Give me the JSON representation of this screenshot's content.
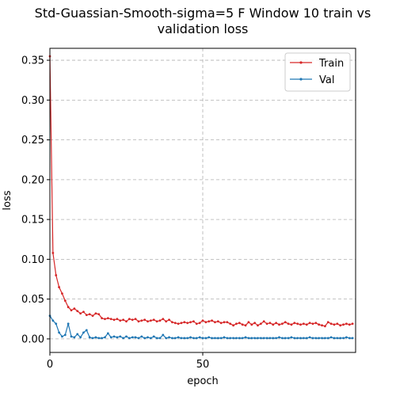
{
  "chart_data": {
    "type": "line",
    "title_line1": "Std-Guassian-Smooth-sigma=5 F Window 10 train vs",
    "title_line2": "validation loss",
    "xlabel": "epoch",
    "ylabel": "loss",
    "xlim": [
      0,
      100
    ],
    "ylim": [
      -0.017,
      0.365
    ],
    "xticks": [
      0,
      50
    ],
    "yticks": [
      0.0,
      0.05,
      0.1,
      0.15,
      0.2,
      0.25,
      0.3,
      0.35
    ],
    "ytick_labels": [
      "0.00",
      "0.05",
      "0.10",
      "0.15",
      "0.20",
      "0.25",
      "0.30",
      "0.35"
    ],
    "xtick_labels": [
      "0",
      "50"
    ],
    "grid": true,
    "legend_position": "top-right",
    "series": [
      {
        "name": "Train",
        "color": "#d62728",
        "values": [
          0.355,
          0.108,
          0.08,
          0.065,
          0.057,
          0.048,
          0.04,
          0.036,
          0.038,
          0.035,
          0.032,
          0.034,
          0.03,
          0.031,
          0.029,
          0.032,
          0.031,
          0.026,
          0.025,
          0.026,
          0.025,
          0.024,
          0.025,
          0.023,
          0.024,
          0.022,
          0.025,
          0.024,
          0.025,
          0.022,
          0.023,
          0.024,
          0.022,
          0.023,
          0.024,
          0.022,
          0.023,
          0.025,
          0.022,
          0.024,
          0.021,
          0.02,
          0.019,
          0.02,
          0.021,
          0.02,
          0.021,
          0.022,
          0.019,
          0.02,
          0.023,
          0.021,
          0.022,
          0.023,
          0.021,
          0.022,
          0.02,
          0.021,
          0.021,
          0.019,
          0.017,
          0.019,
          0.02,
          0.018,
          0.017,
          0.021,
          0.018,
          0.02,
          0.017,
          0.019,
          0.022,
          0.019,
          0.02,
          0.018,
          0.02,
          0.018,
          0.019,
          0.021,
          0.019,
          0.018,
          0.02,
          0.019,
          0.018,
          0.019,
          0.018,
          0.02,
          0.019,
          0.02,
          0.018,
          0.017,
          0.016,
          0.021,
          0.019,
          0.018,
          0.019,
          0.017,
          0.018,
          0.019,
          0.018,
          0.019
        ]
      },
      {
        "name": "Val",
        "color": "#1f77b4",
        "values": [
          0.029,
          0.023,
          0.019,
          0.008,
          0.003,
          0.005,
          0.019,
          0.003,
          0.002,
          0.006,
          0.002,
          0.008,
          0.011,
          0.002,
          0.001,
          0.002,
          0.001,
          0.001,
          0.002,
          0.007,
          0.002,
          0.003,
          0.002,
          0.003,
          0.001,
          0.003,
          0.001,
          0.002,
          0.002,
          0.001,
          0.003,
          0.001,
          0.002,
          0.001,
          0.003,
          0.001,
          0.001,
          0.005,
          0.001,
          0.002,
          0.001,
          0.001,
          0.002,
          0.001,
          0.001,
          0.001,
          0.002,
          0.001,
          0.001,
          0.002,
          0.001,
          0.001,
          0.002,
          0.001,
          0.001,
          0.001,
          0.001,
          0.002,
          0.001,
          0.001,
          0.001,
          0.001,
          0.001,
          0.001,
          0.002,
          0.001,
          0.001,
          0.001,
          0.001,
          0.001,
          0.001,
          0.001,
          0.001,
          0.001,
          0.001,
          0.002,
          0.001,
          0.001,
          0.001,
          0.002,
          0.001,
          0.001,
          0.001,
          0.001,
          0.001,
          0.002,
          0.001,
          0.001,
          0.001,
          0.001,
          0.001,
          0.001,
          0.002,
          0.001,
          0.001,
          0.001,
          0.001,
          0.002,
          0.001,
          0.001
        ]
      }
    ]
  }
}
